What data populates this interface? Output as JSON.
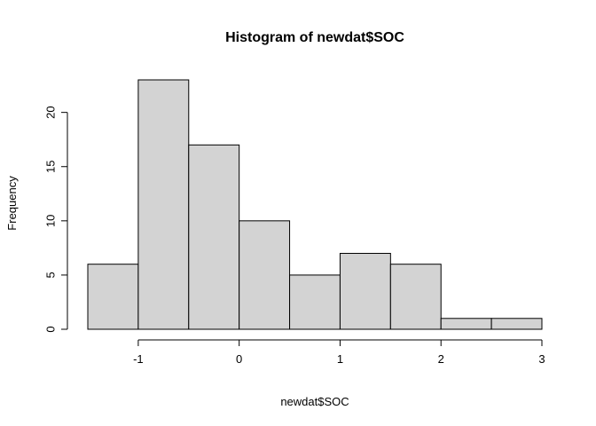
{
  "chart_data": {
    "type": "bar",
    "title": "Histogram of newdat$SOC",
    "xlabel": "newdat$SOC",
    "ylabel": "Frequency",
    "bins": [
      {
        "from": -1.5,
        "to": -1.0,
        "count": 6
      },
      {
        "from": -1.0,
        "to": -0.5,
        "count": 23
      },
      {
        "from": -0.5,
        "to": 0.0,
        "count": 17
      },
      {
        "from": 0.0,
        "to": 0.5,
        "count": 10
      },
      {
        "from": 0.5,
        "to": 1.0,
        "count": 5
      },
      {
        "from": 1.0,
        "to": 1.5,
        "count": 7
      },
      {
        "from": 1.5,
        "to": 2.0,
        "count": 6
      },
      {
        "from": 2.0,
        "to": 2.5,
        "count": 1
      },
      {
        "from": 2.5,
        "to": 3.0,
        "count": 1
      }
    ],
    "xticks": [
      -1,
      0,
      1,
      2,
      3
    ],
    "xtick_labels": [
      "-1",
      "0",
      "1",
      "2",
      "3"
    ],
    "yticks": [
      0,
      5,
      10,
      15,
      20
    ],
    "ytick_labels": [
      "0",
      "5",
      "10",
      "15",
      "20"
    ],
    "xlim": [
      -1.5,
      3.0
    ],
    "ylim": [
      0,
      23
    ],
    "grid": false,
    "bar_color": "#d3d3d3",
    "edge_color": "#000000"
  }
}
